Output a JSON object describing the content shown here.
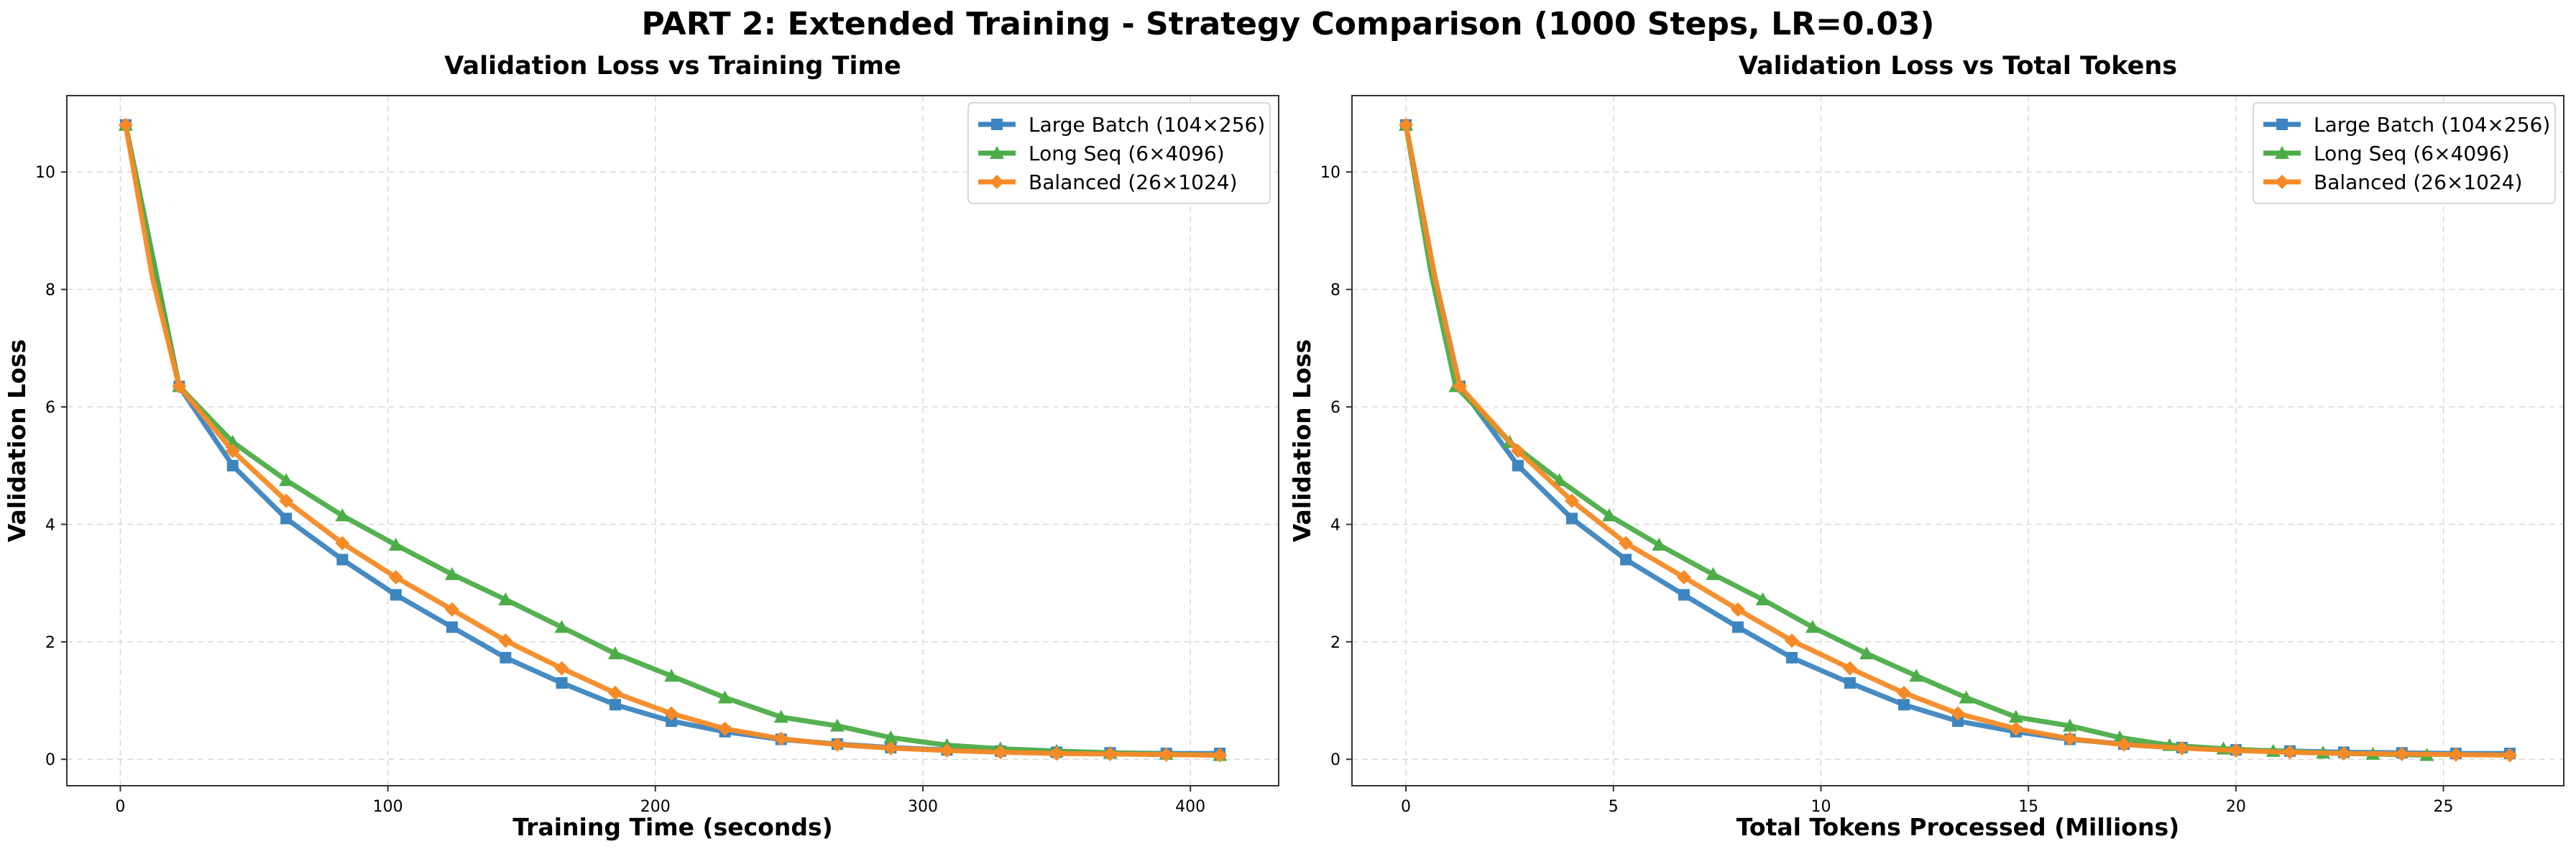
{
  "suptitle": "PART 2: Extended Training - Strategy Comparison (1000 Steps, LR=0.03)",
  "colors": {
    "large_batch": "#3d85c0",
    "long_seq": "#4cad48",
    "balanced": "#f68a26",
    "grid": "#d9d9d9",
    "axis": "#333333"
  },
  "chart_data": [
    {
      "type": "line",
      "title": "Validation Loss vs Training Time",
      "xlabel": "Training Time (seconds)",
      "ylabel": "Validation Loss",
      "xlim": [
        -20,
        433
      ],
      "ylim": [
        -0.45,
        11.3
      ],
      "xticks": [
        0,
        100,
        200,
        300,
        400
      ],
      "yticks": [
        0,
        2,
        4,
        6,
        8,
        10
      ],
      "grid": true,
      "legend": "top-right",
      "series": [
        {
          "name": "Large Batch (104×256)",
          "color_key": "large_batch",
          "marker": "square",
          "x": [
            2,
            22,
            42,
            62,
            83,
            103,
            124,
            144,
            165,
            185,
            206,
            226,
            247,
            268,
            288,
            309,
            329,
            350,
            370,
            391,
            411
          ],
          "y": [
            10.8,
            6.35,
            5.0,
            4.1,
            3.4,
            2.8,
            2.25,
            1.73,
            1.3,
            0.93,
            0.65,
            0.47,
            0.34,
            0.26,
            0.2,
            0.16,
            0.14,
            0.12,
            0.11,
            0.1,
            0.1
          ],
          "markers_x": [
            2,
            22,
            42,
            62,
            83,
            103,
            124,
            144,
            165,
            185,
            206,
            226,
            247,
            268,
            288,
            309,
            329,
            350,
            370,
            391,
            411
          ],
          "markers_y": [
            10.8,
            6.35,
            5.0,
            4.1,
            3.4,
            2.8,
            2.25,
            1.73,
            1.3,
            0.93,
            0.65,
            0.47,
            0.34,
            0.26,
            0.2,
            0.16,
            0.14,
            0.12,
            0.11,
            0.1,
            0.1
          ]
        },
        {
          "name": "Long Seq (6×4096)",
          "color_key": "long_seq",
          "marker": "triangle",
          "x": [
            2,
            22,
            42,
            62,
            83,
            103,
            124,
            144,
            165,
            185,
            206,
            226,
            247,
            268,
            288,
            309,
            329,
            350,
            370,
            391,
            411
          ],
          "y": [
            10.8,
            6.35,
            5.4,
            4.75,
            4.15,
            3.65,
            3.15,
            2.72,
            2.25,
            1.8,
            1.42,
            1.05,
            0.72,
            0.57,
            0.37,
            0.24,
            0.18,
            0.14,
            0.11,
            0.09,
            0.07
          ],
          "markers_x": [
            2,
            22,
            42,
            62,
            83,
            103,
            124,
            144,
            165,
            185,
            206,
            226,
            247,
            268,
            288,
            309,
            329,
            350,
            370,
            391,
            411
          ],
          "markers_y": [
            10.8,
            6.35,
            5.4,
            4.75,
            4.15,
            3.65,
            3.15,
            2.72,
            2.25,
            1.8,
            1.42,
            1.05,
            0.72,
            0.57,
            0.37,
            0.24,
            0.18,
            0.14,
            0.11,
            0.09,
            0.07
          ]
        },
        {
          "name": "Balanced (26×1024)",
          "color_key": "balanced",
          "marker": "diamond",
          "x": [
            2,
            12,
            22,
            42,
            62,
            83,
            103,
            124,
            144,
            165,
            185,
            206,
            226,
            247,
            268,
            288,
            309,
            329,
            350,
            370,
            391,
            411
          ],
          "y": [
            10.8,
            8.2,
            6.35,
            5.25,
            4.4,
            3.68,
            3.1,
            2.55,
            2.02,
            1.55,
            1.13,
            0.78,
            0.52,
            0.35,
            0.25,
            0.19,
            0.15,
            0.12,
            0.1,
            0.09,
            0.08,
            0.07
          ],
          "markers_x": [
            2,
            22,
            42,
            62,
            83,
            103,
            124,
            144,
            165,
            185,
            206,
            226,
            247,
            268,
            288,
            309,
            329,
            350,
            370,
            391,
            411
          ],
          "markers_y": [
            10.8,
            6.35,
            5.25,
            4.4,
            3.68,
            3.1,
            2.55,
            2.02,
            1.55,
            1.13,
            0.78,
            0.52,
            0.35,
            0.25,
            0.19,
            0.15,
            0.12,
            0.1,
            0.09,
            0.08,
            0.07
          ]
        }
      ]
    },
    {
      "type": "line",
      "title": "Validation Loss vs Total Tokens",
      "xlabel": "Total Tokens Processed (Millions)",
      "ylabel": "Validation Loss",
      "xlim": [
        -1.3,
        27.9
      ],
      "ylim": [
        -0.45,
        11.3
      ],
      "xticks": [
        0,
        5,
        10,
        15,
        20,
        25
      ],
      "yticks": [
        0,
        2,
        4,
        6,
        8,
        10
      ],
      "grid": true,
      "legend": "top-right",
      "series": [
        {
          "name": "Large Batch (104×256)",
          "color_key": "large_batch",
          "marker": "square",
          "x": [
            0,
            0.7,
            1.3,
            2.7,
            4.0,
            5.3,
            6.7,
            8.0,
            9.3,
            10.7,
            12.0,
            13.3,
            14.7,
            16.0,
            17.3,
            18.7,
            20.0,
            21.3,
            22.6,
            24.0,
            25.3,
            26.6
          ],
          "y": [
            10.8,
            8.2,
            6.35,
            5.0,
            4.1,
            3.4,
            2.8,
            2.25,
            1.73,
            1.3,
            0.93,
            0.65,
            0.47,
            0.34,
            0.26,
            0.2,
            0.16,
            0.14,
            0.12,
            0.11,
            0.1,
            0.1
          ],
          "markers_x": [
            0,
            1.3,
            2.7,
            4.0,
            5.3,
            6.7,
            8.0,
            9.3,
            10.7,
            12.0,
            13.3,
            14.7,
            16.0,
            17.3,
            18.7,
            20.0,
            21.3,
            22.6,
            24.0,
            25.3,
            26.6
          ],
          "markers_y": [
            10.8,
            6.35,
            5.0,
            4.1,
            3.4,
            2.8,
            2.25,
            1.73,
            1.3,
            0.93,
            0.65,
            0.47,
            0.34,
            0.26,
            0.2,
            0.16,
            0.14,
            0.12,
            0.11,
            0.1,
            0.1
          ]
        },
        {
          "name": "Long Seq (6×4096)",
          "color_key": "long_seq",
          "marker": "triangle",
          "x": [
            0,
            0.6,
            1.2,
            2.5,
            3.7,
            4.9,
            6.1,
            7.4,
            8.6,
            9.8,
            11.1,
            12.3,
            13.5,
            14.7,
            16.0,
            17.2,
            18.4,
            19.7,
            20.9,
            22.1,
            23.3,
            24.6
          ],
          "y": [
            10.8,
            8.3,
            6.35,
            5.4,
            4.75,
            4.15,
            3.65,
            3.15,
            2.72,
            2.25,
            1.8,
            1.42,
            1.05,
            0.72,
            0.57,
            0.37,
            0.24,
            0.18,
            0.14,
            0.11,
            0.09,
            0.07
          ],
          "markers_x": [
            0,
            1.2,
            2.5,
            3.7,
            4.9,
            6.1,
            7.4,
            8.6,
            9.8,
            11.1,
            12.3,
            13.5,
            14.7,
            16.0,
            17.2,
            18.4,
            19.7,
            20.9,
            22.1,
            23.3,
            24.6
          ],
          "markers_y": [
            10.8,
            6.35,
            5.4,
            4.75,
            4.15,
            3.65,
            3.15,
            2.72,
            2.25,
            1.8,
            1.42,
            1.05,
            0.72,
            0.57,
            0.37,
            0.24,
            0.18,
            0.14,
            0.11,
            0.09,
            0.07
          ]
        },
        {
          "name": "Balanced (26×1024)",
          "color_key": "balanced",
          "marker": "diamond",
          "x": [
            0,
            0.7,
            1.3,
            2.7,
            4.0,
            5.3,
            6.7,
            8.0,
            9.3,
            10.7,
            12.0,
            13.3,
            14.7,
            16.0,
            17.3,
            18.7,
            20.0,
            21.3,
            22.6,
            24.0,
            25.3,
            26.6
          ],
          "y": [
            10.8,
            8.2,
            6.35,
            5.25,
            4.4,
            3.68,
            3.1,
            2.55,
            2.02,
            1.55,
            1.13,
            0.78,
            0.52,
            0.35,
            0.25,
            0.19,
            0.15,
            0.12,
            0.1,
            0.09,
            0.08,
            0.07
          ],
          "markers_x": [
            0,
            1.3,
            2.7,
            4.0,
            5.3,
            6.7,
            8.0,
            9.3,
            10.7,
            12.0,
            13.3,
            14.7,
            16.0,
            17.3,
            18.7,
            20.0,
            21.3,
            22.6,
            24.0,
            25.3,
            26.6
          ],
          "markers_y": [
            10.8,
            6.35,
            5.25,
            4.4,
            3.68,
            3.1,
            2.55,
            2.02,
            1.55,
            1.13,
            0.78,
            0.52,
            0.35,
            0.25,
            0.19,
            0.15,
            0.12,
            0.1,
            0.09,
            0.08,
            0.07
          ]
        }
      ]
    }
  ]
}
